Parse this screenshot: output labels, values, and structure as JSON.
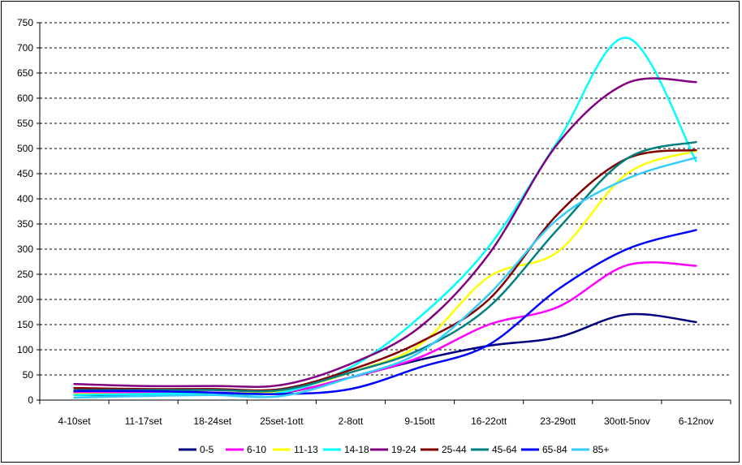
{
  "chart_data": {
    "type": "line",
    "title": "",
    "xlabel": "",
    "ylabel": "",
    "ylim": [
      0,
      750
    ],
    "yticks": [
      0,
      50,
      100,
      150,
      200,
      250,
      300,
      350,
      400,
      450,
      500,
      550,
      600,
      650,
      700,
      750
    ],
    "grid": "horizontal-dashed",
    "legend_position": "bottom",
    "categories": [
      "4-10set",
      "11-17set",
      "18-24set",
      "25set-1ott",
      "2-8ott",
      "9-15ott",
      "16-22ott",
      "23-29ott",
      "30ott-5nov",
      "6-12nov"
    ],
    "series": [
      {
        "name": "0-5",
        "color": "#000080",
        "values": [
          10,
          10,
          12,
          14,
          45,
          80,
          108,
          125,
          170,
          155
        ]
      },
      {
        "name": "6-10",
        "color": "#FF00FF",
        "values": [
          15,
          15,
          15,
          15,
          45,
          85,
          150,
          185,
          268,
          267
        ]
      },
      {
        "name": "11-13",
        "color": "#FFFF00",
        "values": [
          12,
          12,
          14,
          18,
          55,
          110,
          245,
          295,
          450,
          495
        ]
      },
      {
        "name": "14-18",
        "color": "#00FFFF",
        "values": [
          10,
          12,
          14,
          15,
          65,
          165,
          305,
          515,
          720,
          475
        ]
      },
      {
        "name": "19-24",
        "color": "#800080",
        "values": [
          32,
          28,
          28,
          30,
          72,
          145,
          290,
          510,
          630,
          632
        ]
      },
      {
        "name": "25-44",
        "color": "#800000",
        "values": [
          24,
          22,
          22,
          22,
          60,
          115,
          200,
          370,
          480,
          497
        ]
      },
      {
        "name": "45-64",
        "color": "#008080",
        "values": [
          20,
          20,
          20,
          20,
          55,
          100,
          185,
          340,
          480,
          513
        ]
      },
      {
        "name": "65-84",
        "color": "#0000FF",
        "values": [
          18,
          18,
          15,
          12,
          22,
          65,
          110,
          220,
          300,
          338
        ]
      },
      {
        "name": "85+",
        "color": "#33CCFF",
        "values": [
          5,
          8,
          10,
          8,
          45,
          95,
          210,
          360,
          440,
          482
        ]
      }
    ]
  }
}
